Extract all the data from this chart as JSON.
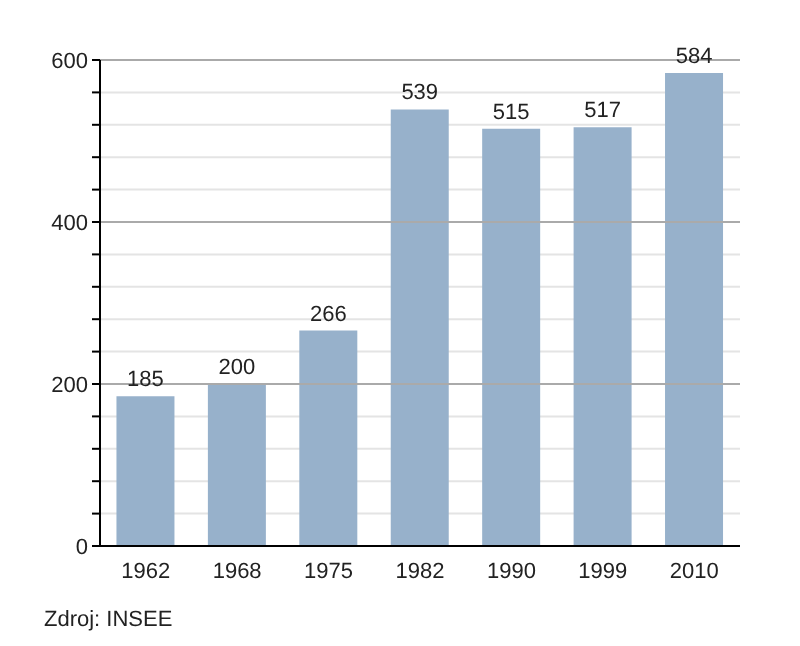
{
  "chart_data": {
    "type": "bar",
    "categories": [
      "1962",
      "1968",
      "1975",
      "1982",
      "1990",
      "1999",
      "2010"
    ],
    "values": [
      185,
      200,
      266,
      539,
      515,
      517,
      584
    ],
    "color": "#97b1cb",
    "data_labels": true,
    "ylim": [
      0,
      600
    ],
    "yticks": [
      0,
      {
        "value": 40,
        "label": null
      },
      {
        "value": 80,
        "label": null
      },
      {
        "value": 120,
        "label": null
      },
      {
        "value": 160,
        "label": null
      },
      200,
      {
        "value": 240,
        "label": null
      },
      {
        "value": 280,
        "label": null
      },
      {
        "value": 320,
        "label": null
      },
      {
        "value": 360,
        "label": null
      },
      400,
      {
        "value": 440,
        "label": null
      },
      {
        "value": 480,
        "label": null
      },
      {
        "value": 520,
        "label": null
      },
      {
        "value": 560,
        "label": null
      },
      600
    ],
    "grid": "y",
    "annotations": [
      "Zdroj: INSEE"
    ]
  }
}
